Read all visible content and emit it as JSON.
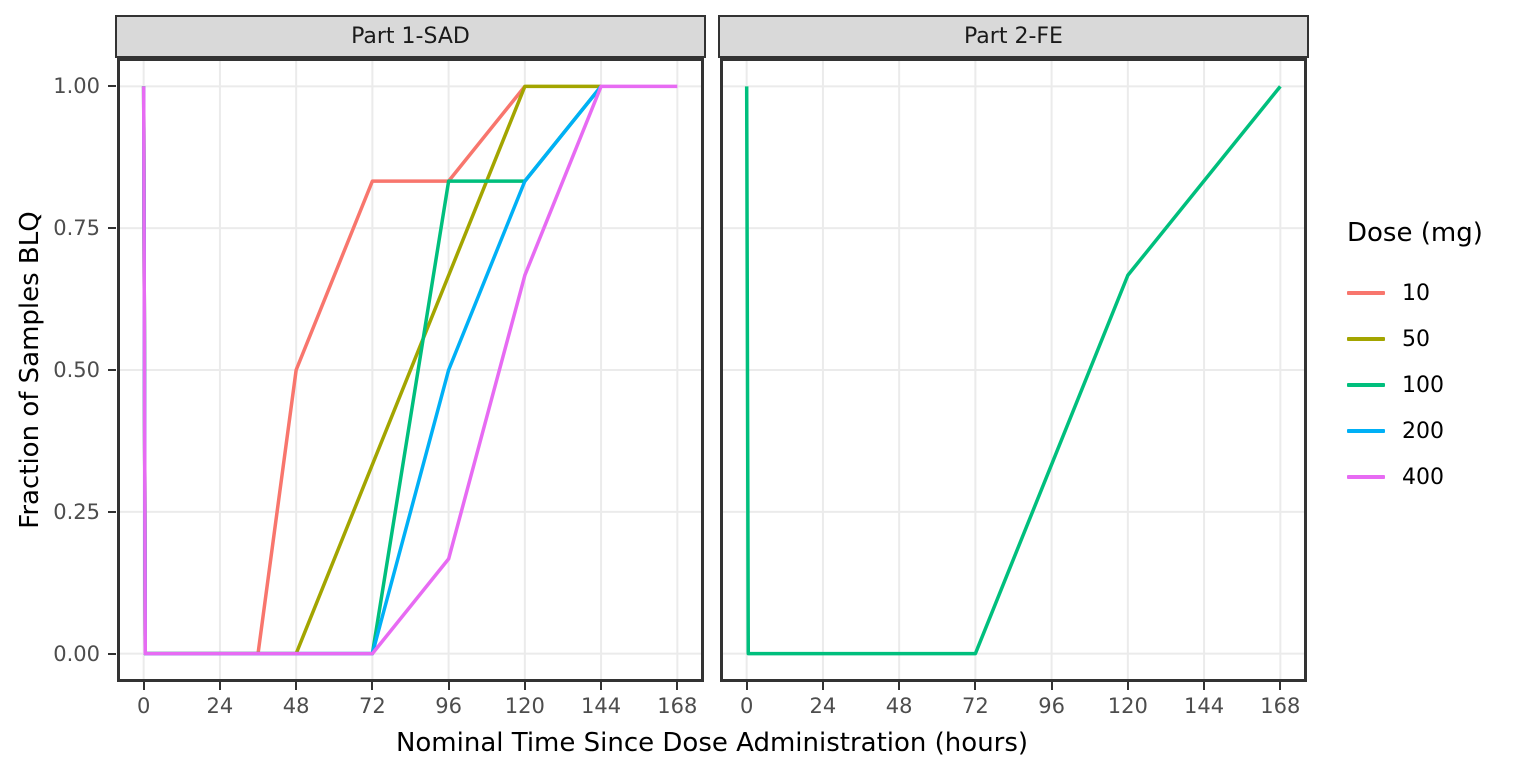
{
  "chart_data": {
    "type": "line",
    "title": "",
    "xlabel": "Nominal Time Since Dose Administration (hours)",
    "ylabel": "Fraction of Samples BLQ",
    "x_ticks": [
      0,
      24,
      48,
      72,
      96,
      120,
      144,
      168
    ],
    "x_tick_labels": [
      "0",
      "24",
      "48",
      "72",
      "96",
      "120",
      "144",
      "168"
    ],
    "y_ticks": [
      0,
      0.25,
      0.5,
      0.75,
      1
    ],
    "y_tick_labels": [
      "0.00",
      "0.25",
      "0.50",
      "0.75",
      "1.00"
    ],
    "xlim": [
      -8.4,
      176.4
    ],
    "ylim": [
      -0.05,
      1.05
    ],
    "grid": "major-only",
    "legend_position": "right",
    "legend_title": "Dose (mg)",
    "legend_entries": [
      {
        "label": "10",
        "color": "#F8766D"
      },
      {
        "label": "50",
        "color": "#A3A500"
      },
      {
        "label": "100",
        "color": "#00BF7D"
      },
      {
        "label": "200",
        "color": "#00B0F6"
      },
      {
        "label": "400",
        "color": "#E76BF3"
      }
    ],
    "facets": [
      {
        "label": "Part 1-SAD",
        "series": [
          {
            "name": "10",
            "color": "#F8766D",
            "points": [
              [
                0,
                1
              ],
              [
                0.5,
                0
              ],
              [
                36,
                0
              ],
              [
                48,
                0.5
              ],
              [
                72,
                0.833
              ],
              [
                96,
                0.833
              ],
              [
                120,
                1
              ]
            ]
          },
          {
            "name": "50",
            "color": "#A3A500",
            "points": [
              [
                0,
                1
              ],
              [
                0.5,
                0
              ],
              [
                48,
                0
              ],
              [
                120,
                1
              ],
              [
                144,
                1
              ]
            ]
          },
          {
            "name": "100",
            "color": "#00BF7D",
            "points": [
              [
                0,
                1
              ],
              [
                0.5,
                0
              ],
              [
                72,
                0
              ],
              [
                96,
                0.833
              ],
              [
                120,
                0.833
              ],
              [
                144,
                1
              ]
            ]
          },
          {
            "name": "200",
            "color": "#00B0F6",
            "points": [
              [
                0,
                1
              ],
              [
                0.5,
                0
              ],
              [
                72,
                0
              ],
              [
                96,
                0.5
              ],
              [
                120,
                0.833
              ],
              [
                144,
                1
              ]
            ]
          },
          {
            "name": "400",
            "color": "#E76BF3",
            "points": [
              [
                0,
                1
              ],
              [
                0.5,
                0
              ],
              [
                72,
                0
              ],
              [
                96,
                0.167
              ],
              [
                120,
                0.667
              ],
              [
                144,
                1
              ],
              [
                168,
                1
              ]
            ]
          }
        ]
      },
      {
        "label": "Part 2-FE",
        "series": [
          {
            "name": "100",
            "color": "#00BF7D",
            "points": [
              [
                0,
                1
              ],
              [
                0.5,
                0
              ],
              [
                72,
                0
              ],
              [
                120,
                0.667
              ],
              [
                168,
                1
              ]
            ]
          }
        ]
      }
    ]
  },
  "style": {
    "gridline_color": "#EBEBEB",
    "panel_border_color": "#333333",
    "strip_background": "#D9D9D9",
    "tick_text_color": "#4D4D4D",
    "series_line_width": 3.5
  }
}
